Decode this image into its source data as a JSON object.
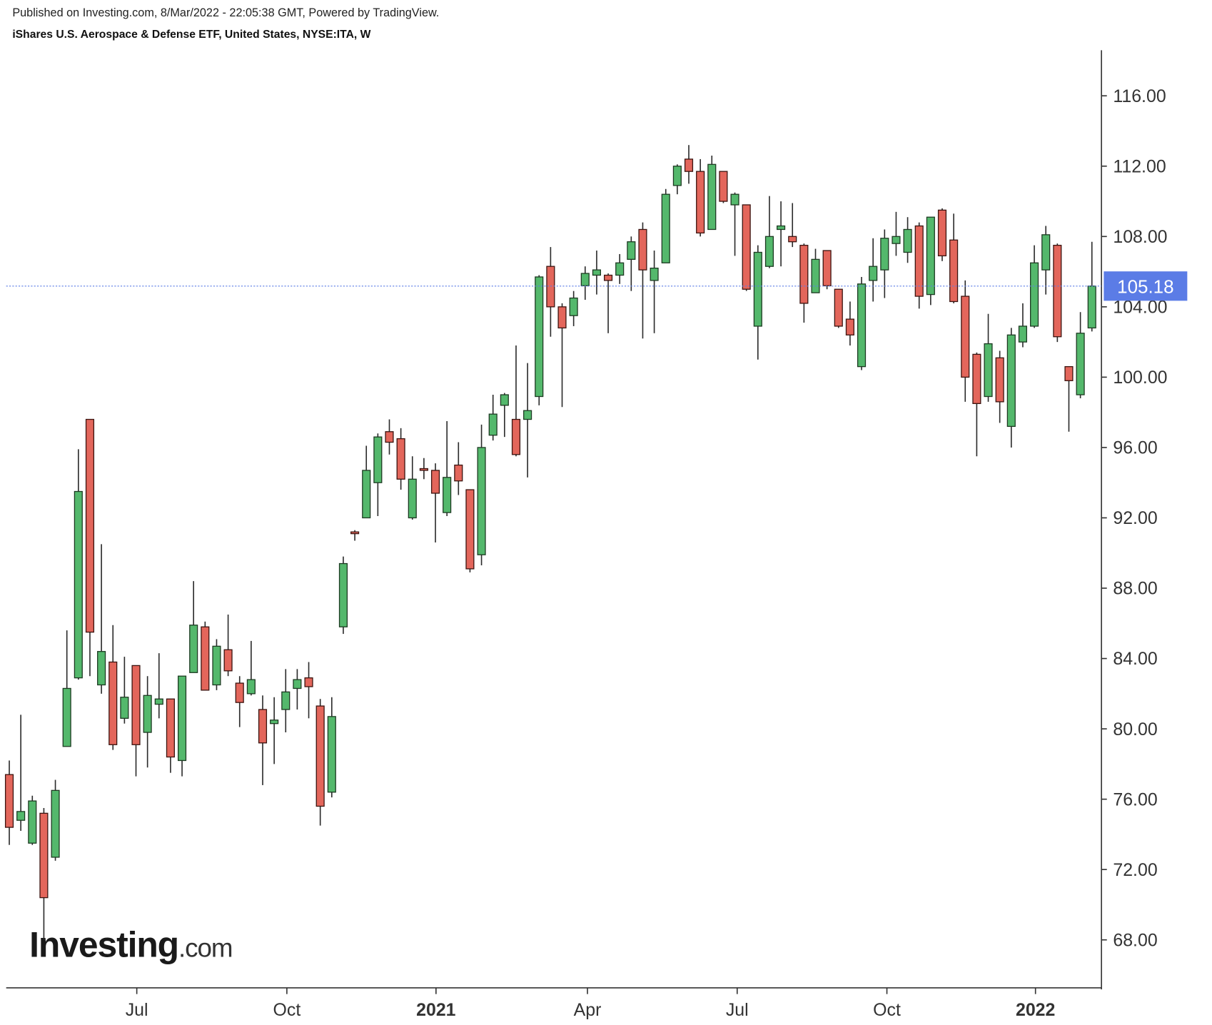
{
  "header": {
    "published": "Published on Investing.com, 8/Mar/2022 - 22:05:38 GMT, Powered by TradingView.",
    "title": "iShares U.S. Aerospace & Defense ETF, United States, NYSE:ITA, W"
  },
  "logo": {
    "main": "Investing",
    "suffix": ".com"
  },
  "chart_data": {
    "type": "candlestick",
    "up_color": "#54b86c",
    "down_color": "#e3665b",
    "last_price_color": "#5b7ce6",
    "last_price": 105.18,
    "xlim": [
      -0.27,
      94.83
    ],
    "ylim": [
      65.27,
      118.59
    ],
    "xticks": [
      {
        "value": 11.07,
        "label": "Jul"
      },
      {
        "value": 24.1,
        "label": "Oct"
      },
      {
        "value": 37.05,
        "label": "2021"
      },
      {
        "value": 50.2,
        "label": "Apr"
      },
      {
        "value": 63.2,
        "label": "Jul"
      },
      {
        "value": 76.2,
        "label": "Oct"
      },
      {
        "value": 89.1,
        "label": "2022"
      }
    ],
    "yticks": [
      {
        "value": 68,
        "label": "68.00"
      },
      {
        "value": 72,
        "label": "72.00"
      },
      {
        "value": 76,
        "label": "76.00"
      },
      {
        "value": 80,
        "label": "80.00"
      },
      {
        "value": 84,
        "label": "84.00"
      },
      {
        "value": 88,
        "label": "88.00"
      },
      {
        "value": 92,
        "label": "92.00"
      },
      {
        "value": 96,
        "label": "96.00"
      },
      {
        "value": 100,
        "label": "100.00"
      },
      {
        "value": 104,
        "label": "104.00"
      },
      {
        "value": 108,
        "label": "108.00"
      },
      {
        "value": 112,
        "label": "112.00"
      },
      {
        "value": 116,
        "label": "116.00"
      }
    ],
    "open": [
      77.4,
      74.8,
      73.5,
      75.2,
      72.7,
      79.0,
      82.9,
      97.6,
      82.5,
      83.8,
      80.6,
      83.6,
      79.8,
      81.4,
      81.7,
      78.2,
      83.2,
      85.8,
      82.5,
      84.5,
      82.6,
      82.0,
      81.1,
      80.3,
      81.1,
      82.3,
      82.9,
      81.3,
      76.4,
      85.8,
      91.2,
      92.0,
      94.0,
      96.9,
      96.5,
      92.0,
      94.8,
      94.7,
      92.3,
      95.0,
      93.6,
      89.9,
      96.7,
      98.4,
      97.6,
      97.6,
      98.9,
      106.3,
      104.0,
      103.5,
      105.2,
      105.8,
      105.8,
      105.8,
      106.7,
      108.4,
      105.5,
      106.5,
      110.9,
      112.4,
      111.7,
      108.4,
      111.7,
      109.8,
      109.8,
      102.9,
      106.3,
      108.4,
      108.0,
      107.5,
      104.8,
      107.2,
      105.0,
      103.3,
      100.6,
      105.5,
      106.1,
      107.6,
      107.1,
      108.6,
      104.7,
      109.5,
      107.8,
      104.6,
      101.3,
      98.9,
      101.1,
      97.2,
      102.0,
      102.9,
      106.1,
      107.5,
      100.6,
      99.0,
      102.8
    ],
    "high": [
      78.2,
      80.8,
      76.2,
      75.5,
      77.1,
      85.6,
      95.9,
      97.6,
      90.5,
      85.9,
      84.1,
      83.6,
      83.0,
      84.3,
      81.7,
      83.0,
      88.4,
      86.1,
      85.1,
      86.5,
      83.0,
      85.0,
      81.9,
      81.8,
      83.4,
      83.4,
      83.8,
      81.7,
      81.8,
      89.8,
      91.3,
      96.1,
      96.8,
      97.6,
      97.1,
      95.5,
      95.4,
      95.1,
      97.5,
      96.3,
      93.6,
      97.3,
      99.0,
      99.1,
      101.8,
      100.8,
      105.8,
      107.4,
      104.2,
      104.9,
      106.3,
      107.2,
      105.9,
      107.0,
      108.0,
      108.8,
      107.2,
      110.7,
      112.1,
      113.2,
      112.4,
      112.6,
      111.7,
      110.5,
      109.8,
      107.5,
      110.3,
      110.0,
      109.9,
      107.6,
      107.3,
      107.2,
      105.0,
      104.3,
      105.7,
      107.9,
      108.4,
      109.4,
      109.1,
      108.8,
      109.1,
      109.6,
      109.3,
      105.5,
      101.4,
      103.6,
      101.5,
      102.8,
      104.2,
      107.5,
      108.6,
      107.6,
      100.6,
      103.7,
      107.7
    ],
    "low": [
      73.4,
      74.2,
      73.4,
      68.0,
      72.5,
      79.0,
      82.8,
      83.0,
      82.0,
      78.8,
      80.3,
      77.3,
      77.8,
      80.6,
      77.5,
      77.3,
      83.2,
      82.2,
      82.2,
      83.0,
      80.1,
      81.9,
      76.8,
      78.0,
      79.8,
      81.1,
      80.6,
      74.5,
      76.1,
      85.4,
      90.7,
      92.0,
      92.1,
      95.6,
      93.6,
      91.9,
      94.2,
      90.6,
      92.1,
      93.3,
      88.9,
      89.3,
      96.4,
      96.6,
      95.5,
      94.3,
      98.4,
      102.3,
      98.3,
      102.9,
      104.4,
      104.7,
      102.5,
      105.3,
      104.9,
      102.2,
      102.5,
      106.5,
      110.4,
      111.0,
      108.0,
      108.4,
      109.9,
      106.9,
      104.9,
      101.0,
      106.2,
      106.3,
      107.4,
      103.1,
      104.8,
      105.0,
      102.8,
      101.8,
      100.4,
      104.3,
      104.5,
      106.9,
      106.5,
      103.9,
      104.1,
      106.6,
      104.2,
      98.6,
      95.5,
      98.6,
      97.4,
      96.0,
      101.7,
      102.8,
      104.7,
      102.0,
      96.9,
      98.8,
      102.6
    ],
    "close": [
      74.4,
      75.3,
      75.9,
      70.4,
      76.5,
      82.3,
      93.5,
      85.5,
      84.4,
      79.1,
      81.8,
      79.1,
      81.9,
      81.7,
      78.4,
      83.0,
      85.9,
      82.2,
      84.7,
      83.3,
      81.5,
      82.8,
      79.2,
      80.5,
      82.1,
      82.8,
      82.4,
      75.6,
      80.7,
      89.4,
      91.1,
      94.7,
      96.6,
      96.3,
      94.2,
      94.2,
      94.7,
      93.4,
      94.3,
      94.1,
      89.1,
      96.0,
      97.9,
      99.0,
      95.6,
      98.1,
      105.7,
      104.0,
      102.8,
      104.5,
      105.9,
      106.1,
      105.5,
      106.5,
      107.7,
      106.1,
      106.2,
      110.4,
      112.0,
      111.7,
      108.2,
      112.1,
      110.0,
      110.4,
      105.0,
      107.1,
      108.0,
      108.6,
      107.7,
      104.2,
      106.7,
      105.2,
      102.9,
      102.4,
      105.3,
      106.3,
      107.9,
      108.0,
      108.4,
      104.6,
      109.1,
      106.9,
      104.3,
      100.0,
      98.5,
      101.9,
      98.6,
      102.4,
      102.9,
      106.5,
      108.1,
      102.3,
      99.8,
      102.5,
      105.18
    ]
  }
}
